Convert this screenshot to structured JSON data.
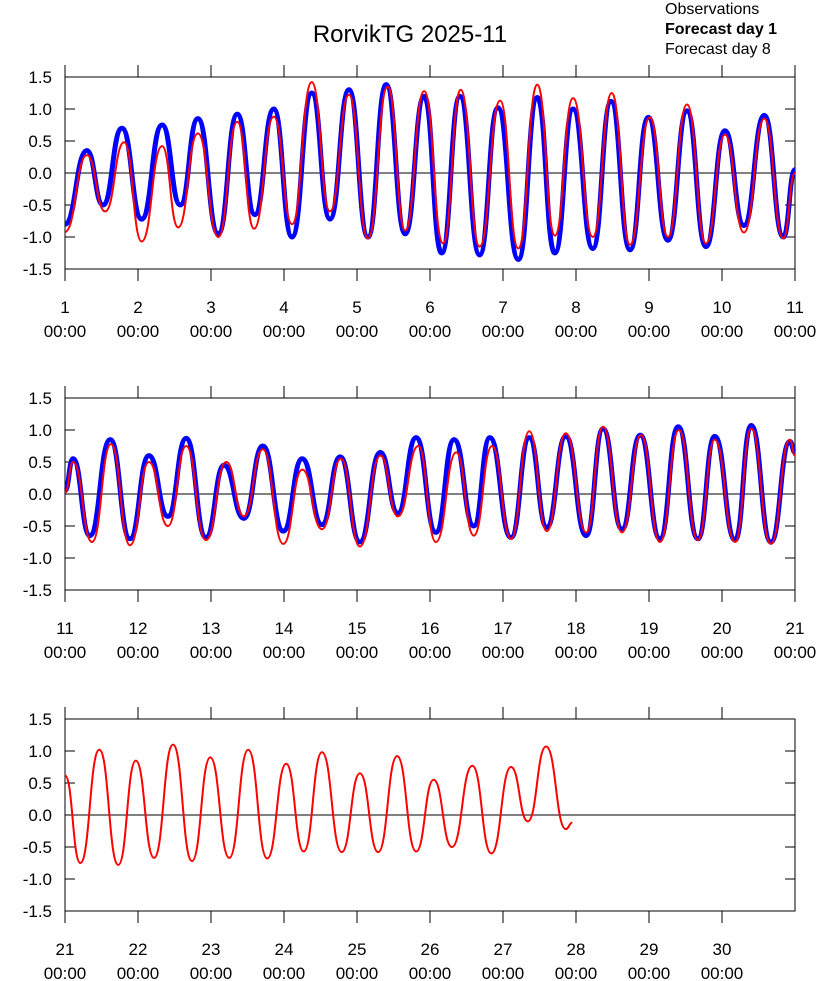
{
  "chart_data": [
    {
      "type": "line",
      "title": "RorvikTG 2025-11",
      "xlim": [
        1,
        11
      ],
      "xticks": [
        {
          "value": 1,
          "label": "1\n00:00"
        },
        {
          "value": 2,
          "label": "2\n00:00"
        },
        {
          "value": 3,
          "label": "3\n00:00"
        },
        {
          "value": 4,
          "label": "4\n00:00"
        },
        {
          "value": 5,
          "label": "5\n00:00"
        },
        {
          "value": 6,
          "label": "6\n00:00"
        },
        {
          "value": 7,
          "label": "7\n00:00"
        },
        {
          "value": 8,
          "label": "8\n00:00"
        },
        {
          "value": 9,
          "label": "9\n00:00"
        },
        {
          "value": 10,
          "label": "10\n00:00"
        },
        {
          "value": 11,
          "label": "11\n00:00"
        }
      ],
      "ylim": [
        -1.5,
        1.5
      ],
      "yticks": [
        1.5,
        {
          "value": 1,
          "label": "1.0"
        },
        0.5,
        {
          "value": 0,
          "label": "0.0"
        },
        -0.5,
        {
          "value": -1,
          "label": "-1.0"
        },
        -1.5
      ],
      "series": [
        {
          "name": "Observations",
          "color": "#000000",
          "x": [],
          "values": []
        },
        {
          "name": "Forecast day 1",
          "color": "#0000ff",
          "x": [
            1.0,
            1.3,
            1.52,
            1.78,
            2.05,
            2.33,
            2.58,
            2.82,
            3.1,
            3.36,
            3.6,
            3.86,
            4.11,
            4.38,
            4.63,
            4.89,
            5.15,
            5.4,
            5.66,
            5.92,
            6.16,
            6.41,
            6.68,
            6.93,
            7.21,
            7.47,
            7.71,
            7.96,
            8.23,
            8.48,
            8.74,
            8.99,
            9.26,
            9.52,
            9.78,
            10.04,
            10.3,
            10.58,
            10.84,
            11.0
          ],
          "values": [
            -0.8,
            0.35,
            -0.5,
            0.7,
            -0.72,
            0.75,
            -0.5,
            0.85,
            -0.95,
            0.92,
            -0.65,
            1.0,
            -1.0,
            1.25,
            -0.72,
            1.3,
            -1.0,
            1.38,
            -0.95,
            1.2,
            -1.25,
            1.2,
            -1.28,
            1.02,
            -1.35,
            1.18,
            -1.25,
            1.0,
            -1.18,
            1.12,
            -1.2,
            0.87,
            -1.05,
            0.97,
            -1.15,
            0.66,
            -0.82,
            0.9,
            -1.0,
            0.05
          ]
        },
        {
          "name": "Forecast day 8",
          "color": "#ff0000",
          "x": [
            1.0,
            1.3,
            1.55,
            1.81,
            2.05,
            2.33,
            2.55,
            2.82,
            3.1,
            3.36,
            3.59,
            3.86,
            4.11,
            4.38,
            4.63,
            4.89,
            5.15,
            5.42,
            5.66,
            5.92,
            6.18,
            6.42,
            6.68,
            6.96,
            7.21,
            7.47,
            7.71,
            7.96,
            8.23,
            8.49,
            8.74,
            9.01,
            9.26,
            9.52,
            9.78,
            10.04,
            10.3,
            10.58,
            10.84,
            11.0
          ],
          "values": [
            -0.92,
            0.28,
            -0.6,
            0.48,
            -1.07,
            0.42,
            -0.85,
            0.62,
            -1.0,
            0.8,
            -0.87,
            0.88,
            -0.8,
            1.42,
            -0.6,
            1.22,
            -1.02,
            1.35,
            -0.9,
            1.28,
            -1.1,
            1.3,
            -1.15,
            1.13,
            -1.18,
            1.38,
            -0.98,
            1.17,
            -1.0,
            1.25,
            -1.12,
            0.87,
            -1.0,
            1.07,
            -1.1,
            0.6,
            -0.93,
            0.85,
            -1.02,
            0.0
          ]
        }
      ]
    },
    {
      "type": "line",
      "xlim": [
        11,
        21
      ],
      "xticks": [
        {
          "value": 11,
          "label": "11\n00:00"
        },
        {
          "value": 12,
          "label": "12\n00:00"
        },
        {
          "value": 13,
          "label": "13\n00:00"
        },
        {
          "value": 14,
          "label": "14\n00:00"
        },
        {
          "value": 15,
          "label": "15\n00:00"
        },
        {
          "value": 16,
          "label": "16\n00:00"
        },
        {
          "value": 17,
          "label": "17\n00:00"
        },
        {
          "value": 18,
          "label": "18\n00:00"
        },
        {
          "value": 19,
          "label": "19\n00:00"
        },
        {
          "value": 20,
          "label": "20\n00:00"
        },
        {
          "value": 21,
          "label": "21\n00:00"
        }
      ],
      "ylim": [
        -1.5,
        1.5
      ],
      "yticks": [
        1.5,
        {
          "value": 1,
          "label": "1.0"
        },
        0.5,
        {
          "value": 0,
          "label": "0.0"
        },
        -0.5,
        {
          "value": -1,
          "label": "-1.0"
        },
        -1.5
      ],
      "series": [
        {
          "color": "#0000ff",
          "x": [
            11.0,
            11.11,
            11.34,
            11.62,
            11.89,
            12.15,
            12.41,
            12.66,
            12.93,
            13.18,
            13.45,
            13.71,
            13.99,
            14.25,
            14.52,
            14.77,
            15.04,
            15.32,
            15.56,
            15.81,
            16.08,
            16.33,
            16.6,
            16.82,
            17.11,
            17.36,
            17.6,
            17.86,
            18.14,
            18.37,
            18.63,
            18.88,
            19.15,
            19.4,
            19.67,
            19.9,
            20.18,
            20.4,
            20.67,
            20.93,
            21.0
          ],
          "values": [
            0.05,
            0.55,
            -0.65,
            0.85,
            -0.7,
            0.6,
            -0.35,
            0.87,
            -0.68,
            0.45,
            -0.38,
            0.75,
            -0.58,
            0.55,
            -0.48,
            0.58,
            -0.75,
            0.65,
            -0.3,
            0.88,
            -0.6,
            0.85,
            -0.5,
            0.88,
            -0.68,
            0.88,
            -0.52,
            0.9,
            -0.65,
            1.02,
            -0.55,
            0.92,
            -0.7,
            1.05,
            -0.7,
            0.9,
            -0.72,
            1.07,
            -0.75,
            0.82,
            0.65
          ]
        },
        {
          "color": "#ff0000",
          "x": [
            11.0,
            11.11,
            11.37,
            11.63,
            11.89,
            12.15,
            12.41,
            12.66,
            12.93,
            13.21,
            13.45,
            13.71,
            13.99,
            14.25,
            14.52,
            14.78,
            15.04,
            15.32,
            15.56,
            15.84,
            16.08,
            16.36,
            16.6,
            16.85,
            17.11,
            17.36,
            17.6,
            17.86,
            18.14,
            18.37,
            18.63,
            18.89,
            19.15,
            19.41,
            19.67,
            19.9,
            20.18,
            20.4,
            20.67,
            20.93,
            21.0
          ],
          "values": [
            0.02,
            0.5,
            -0.75,
            0.78,
            -0.8,
            0.5,
            -0.5,
            0.75,
            -0.72,
            0.5,
            -0.35,
            0.7,
            -0.78,
            0.38,
            -0.55,
            0.55,
            -0.82,
            0.6,
            -0.35,
            0.75,
            -0.75,
            0.65,
            -0.65,
            0.75,
            -0.7,
            0.98,
            -0.58,
            0.95,
            -0.6,
            1.05,
            -0.6,
            0.92,
            -0.75,
            1.0,
            -0.72,
            0.85,
            -0.75,
            1.02,
            -0.78,
            0.85,
            0.6
          ]
        }
      ]
    },
    {
      "type": "line",
      "xlim": [
        21,
        31
      ],
      "xticks": [
        {
          "value": 21,
          "label": "21\n00:00"
        },
        {
          "value": 22,
          "label": "22\n00:00"
        },
        {
          "value": 23,
          "label": "23\n00:00"
        },
        {
          "value": 24,
          "label": "24\n00:00"
        },
        {
          "value": 25,
          "label": "25\n00:00"
        },
        {
          "value": 26,
          "label": "26\n00:00"
        },
        {
          "value": 27,
          "label": "27\n00:00"
        },
        {
          "value": 28,
          "label": "28\n00:00"
        },
        {
          "value": 29,
          "label": "29\n00:00"
        },
        {
          "value": 30,
          "label": "30\n00:00"
        }
      ],
      "ylim": [
        -1.5,
        1.5
      ],
      "yticks": [
        1.5,
        {
          "value": 1,
          "label": "1.0"
        },
        0.5,
        {
          "value": 0,
          "label": "0.0"
        },
        -0.5,
        {
          "value": -1,
          "label": "-1.0"
        },
        -1.5
      ],
      "series": [
        {
          "color": "#ff0000",
          "x": [
            21.0,
            21.21,
            21.47,
            21.73,
            21.97,
            22.22,
            22.48,
            22.74,
            22.99,
            23.25,
            23.51,
            23.77,
            24.03,
            24.27,
            24.52,
            24.79,
            25.04,
            25.29,
            25.55,
            25.81,
            26.05,
            26.3,
            26.58,
            26.84,
            27.11,
            27.34,
            27.59,
            27.86,
            27.95
          ],
          "values": [
            0.62,
            -0.75,
            1.02,
            -0.78,
            0.85,
            -0.67,
            1.1,
            -0.72,
            0.9,
            -0.67,
            1.02,
            -0.68,
            0.8,
            -0.57,
            0.98,
            -0.58,
            0.65,
            -0.58,
            0.92,
            -0.57,
            0.55,
            -0.5,
            0.77,
            -0.6,
            0.75,
            -0.1,
            1.07,
            -0.22,
            -0.12
          ]
        }
      ]
    }
  ]
}
